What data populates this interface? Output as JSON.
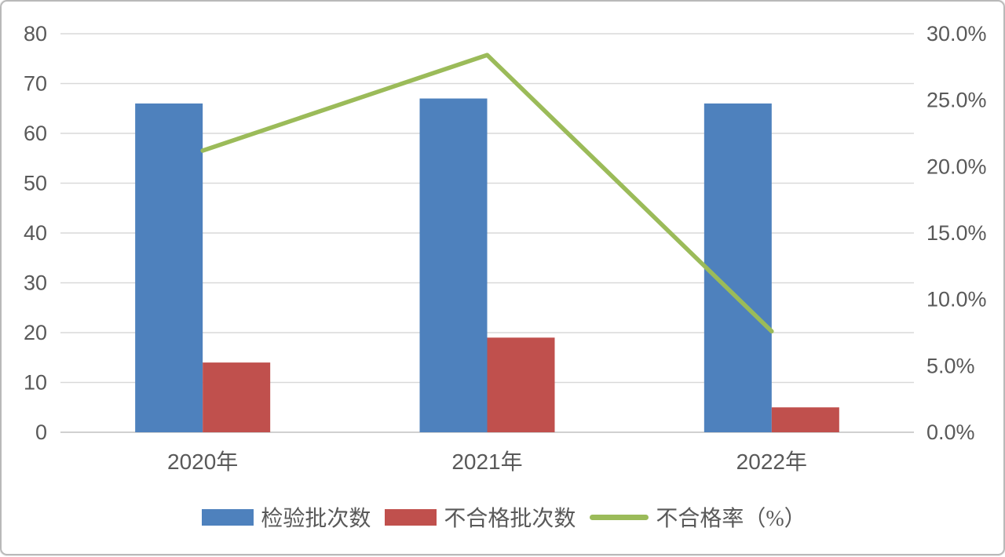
{
  "frame": {
    "background": "#FFFFFF",
    "border_color": "#B9B9B9"
  },
  "chart_data": {
    "type": "bar",
    "subtype": "grouped-bar-with-line-overlay",
    "title": "",
    "categories": [
      "2020年",
      "2021年",
      "2022年"
    ],
    "series": [
      {
        "name": "检验批次数",
        "type": "bar",
        "axis": "left",
        "color": "#4E81BD",
        "values": [
          66,
          67,
          66
        ]
      },
      {
        "name": "不合格批次数",
        "type": "bar",
        "axis": "left",
        "color": "#C0504D",
        "values": [
          14,
          19,
          5
        ]
      },
      {
        "name": "不合格率（%）",
        "type": "line",
        "axis": "right",
        "color": "#9BBB59",
        "values": [
          21.2,
          28.4,
          7.6
        ],
        "unit": "%"
      }
    ],
    "left_axis": {
      "min": 0,
      "max": 80,
      "step": 10,
      "tick_labels": [
        "0",
        "10",
        "20",
        "30",
        "40",
        "50",
        "60",
        "70",
        "80"
      ]
    },
    "right_axis": {
      "min": 0,
      "max": 30,
      "step": 5,
      "tick_labels": [
        "0.0%",
        "5.0%",
        "10.0%",
        "15.0%",
        "20.0%",
        "25.0%",
        "30.0%"
      ]
    },
    "grid": "horizontal",
    "gridline_color": "#D9D9D9",
    "axis_line_color": "#C9C9C9",
    "tick_label_color": "#595959",
    "legend_position": "bottom"
  }
}
